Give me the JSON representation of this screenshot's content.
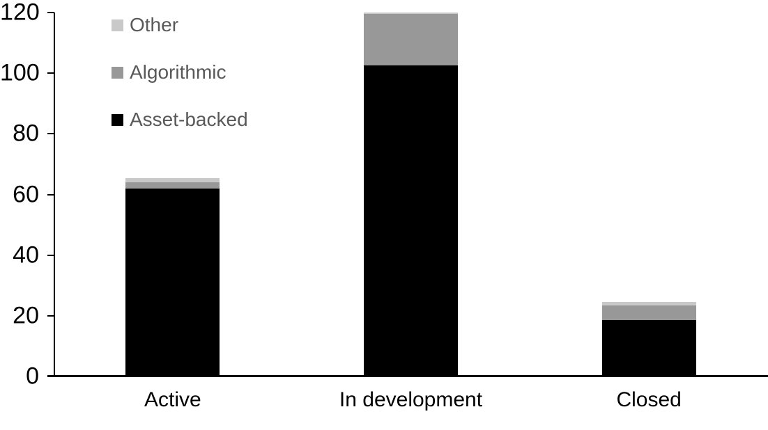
{
  "chart_data": {
    "type": "bar",
    "subtype": "stacked-bar",
    "title": "",
    "categories": [
      "Active",
      "In development",
      "Closed"
    ],
    "series": [
      {
        "name": "Asset-backed",
        "color": "#000000",
        "values": [
          62,
          102.5,
          18.5
        ]
      },
      {
        "name": "Algorithmic",
        "color": "#989898",
        "values": [
          2,
          17,
          5
        ]
      },
      {
        "name": "Other",
        "color": "#c9c9c9",
        "values": [
          1.5,
          0.5,
          1
        ]
      }
    ],
    "y_axis": {
      "min": 0,
      "max": 120,
      "tick_step": 20,
      "ticks": [
        0,
        20,
        40,
        60,
        80,
        100,
        120
      ]
    },
    "x_axis": {
      "label": ""
    },
    "legend": {
      "position": "top-left",
      "order_top_to_bottom": [
        "Other",
        "Algorithmic",
        "Asset-backed"
      ],
      "text_color": "#595959"
    },
    "grid": false,
    "background_color": "#ffffff",
    "axis_color": "#000000"
  }
}
